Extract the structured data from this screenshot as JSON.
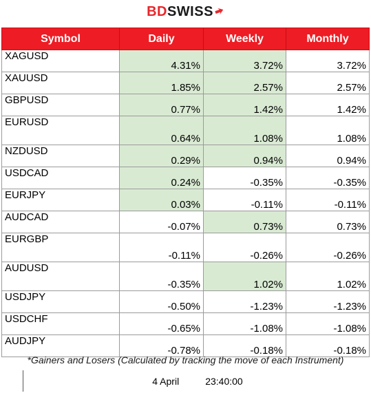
{
  "brand": {
    "name_first": "BD",
    "name_rest": "SWISS"
  },
  "table": {
    "headers": [
      "Symbol",
      "Daily",
      "Weekly",
      "Monthly"
    ],
    "rows": [
      {
        "symbol": "XAGUSD",
        "daily": "4.31%",
        "weekly": "3.72%",
        "monthly": "3.72%"
      },
      {
        "symbol": "XAUUSD",
        "daily": "1.85%",
        "weekly": "2.57%",
        "monthly": "2.57%"
      },
      {
        "symbol": "GBPUSD",
        "daily": "0.77%",
        "weekly": "1.42%",
        "monthly": "1.42%"
      },
      {
        "symbol": "EURUSD",
        "daily": "0.64%",
        "weekly": "1.08%",
        "monthly": "1.08%"
      },
      {
        "symbol": "NZDUSD",
        "daily": "0.29%",
        "weekly": "0.94%",
        "monthly": "0.94%"
      },
      {
        "symbol": "USDCAD",
        "daily": "0.24%",
        "weekly": "-0.35%",
        "monthly": "-0.35%"
      },
      {
        "symbol": "EURJPY",
        "daily": "0.03%",
        "weekly": "-0.11%",
        "monthly": "-0.11%"
      },
      {
        "symbol": "AUDCAD",
        "daily": "-0.07%",
        "weekly": "0.73%",
        "monthly": "0.73%"
      },
      {
        "symbol": "EURGBP",
        "daily": "-0.11%",
        "weekly": "-0.26%",
        "monthly": "-0.26%"
      },
      {
        "symbol": "AUDUSD",
        "daily": "-0.35%",
        "weekly": "1.02%",
        "monthly": "1.02%"
      },
      {
        "symbol": "USDJPY",
        "daily": "-0.50%",
        "weekly": "-1.23%",
        "monthly": "-1.23%"
      },
      {
        "symbol": "USDCHF",
        "daily": "-0.65%",
        "weekly": "-1.08%",
        "monthly": "-1.08%"
      },
      {
        "symbol": "AUDJPY",
        "daily": "-0.78%",
        "weekly": "-0.18%",
        "monthly": "-0.18%"
      }
    ],
    "highlight_color": "#d9ead3",
    "header_color": "#ee1c24"
  },
  "note": "*Gainers and Losers (Calculated by tracking the move of each Instrument)",
  "timestamp": {
    "date": "4 April",
    "time": "23:40:00"
  }
}
